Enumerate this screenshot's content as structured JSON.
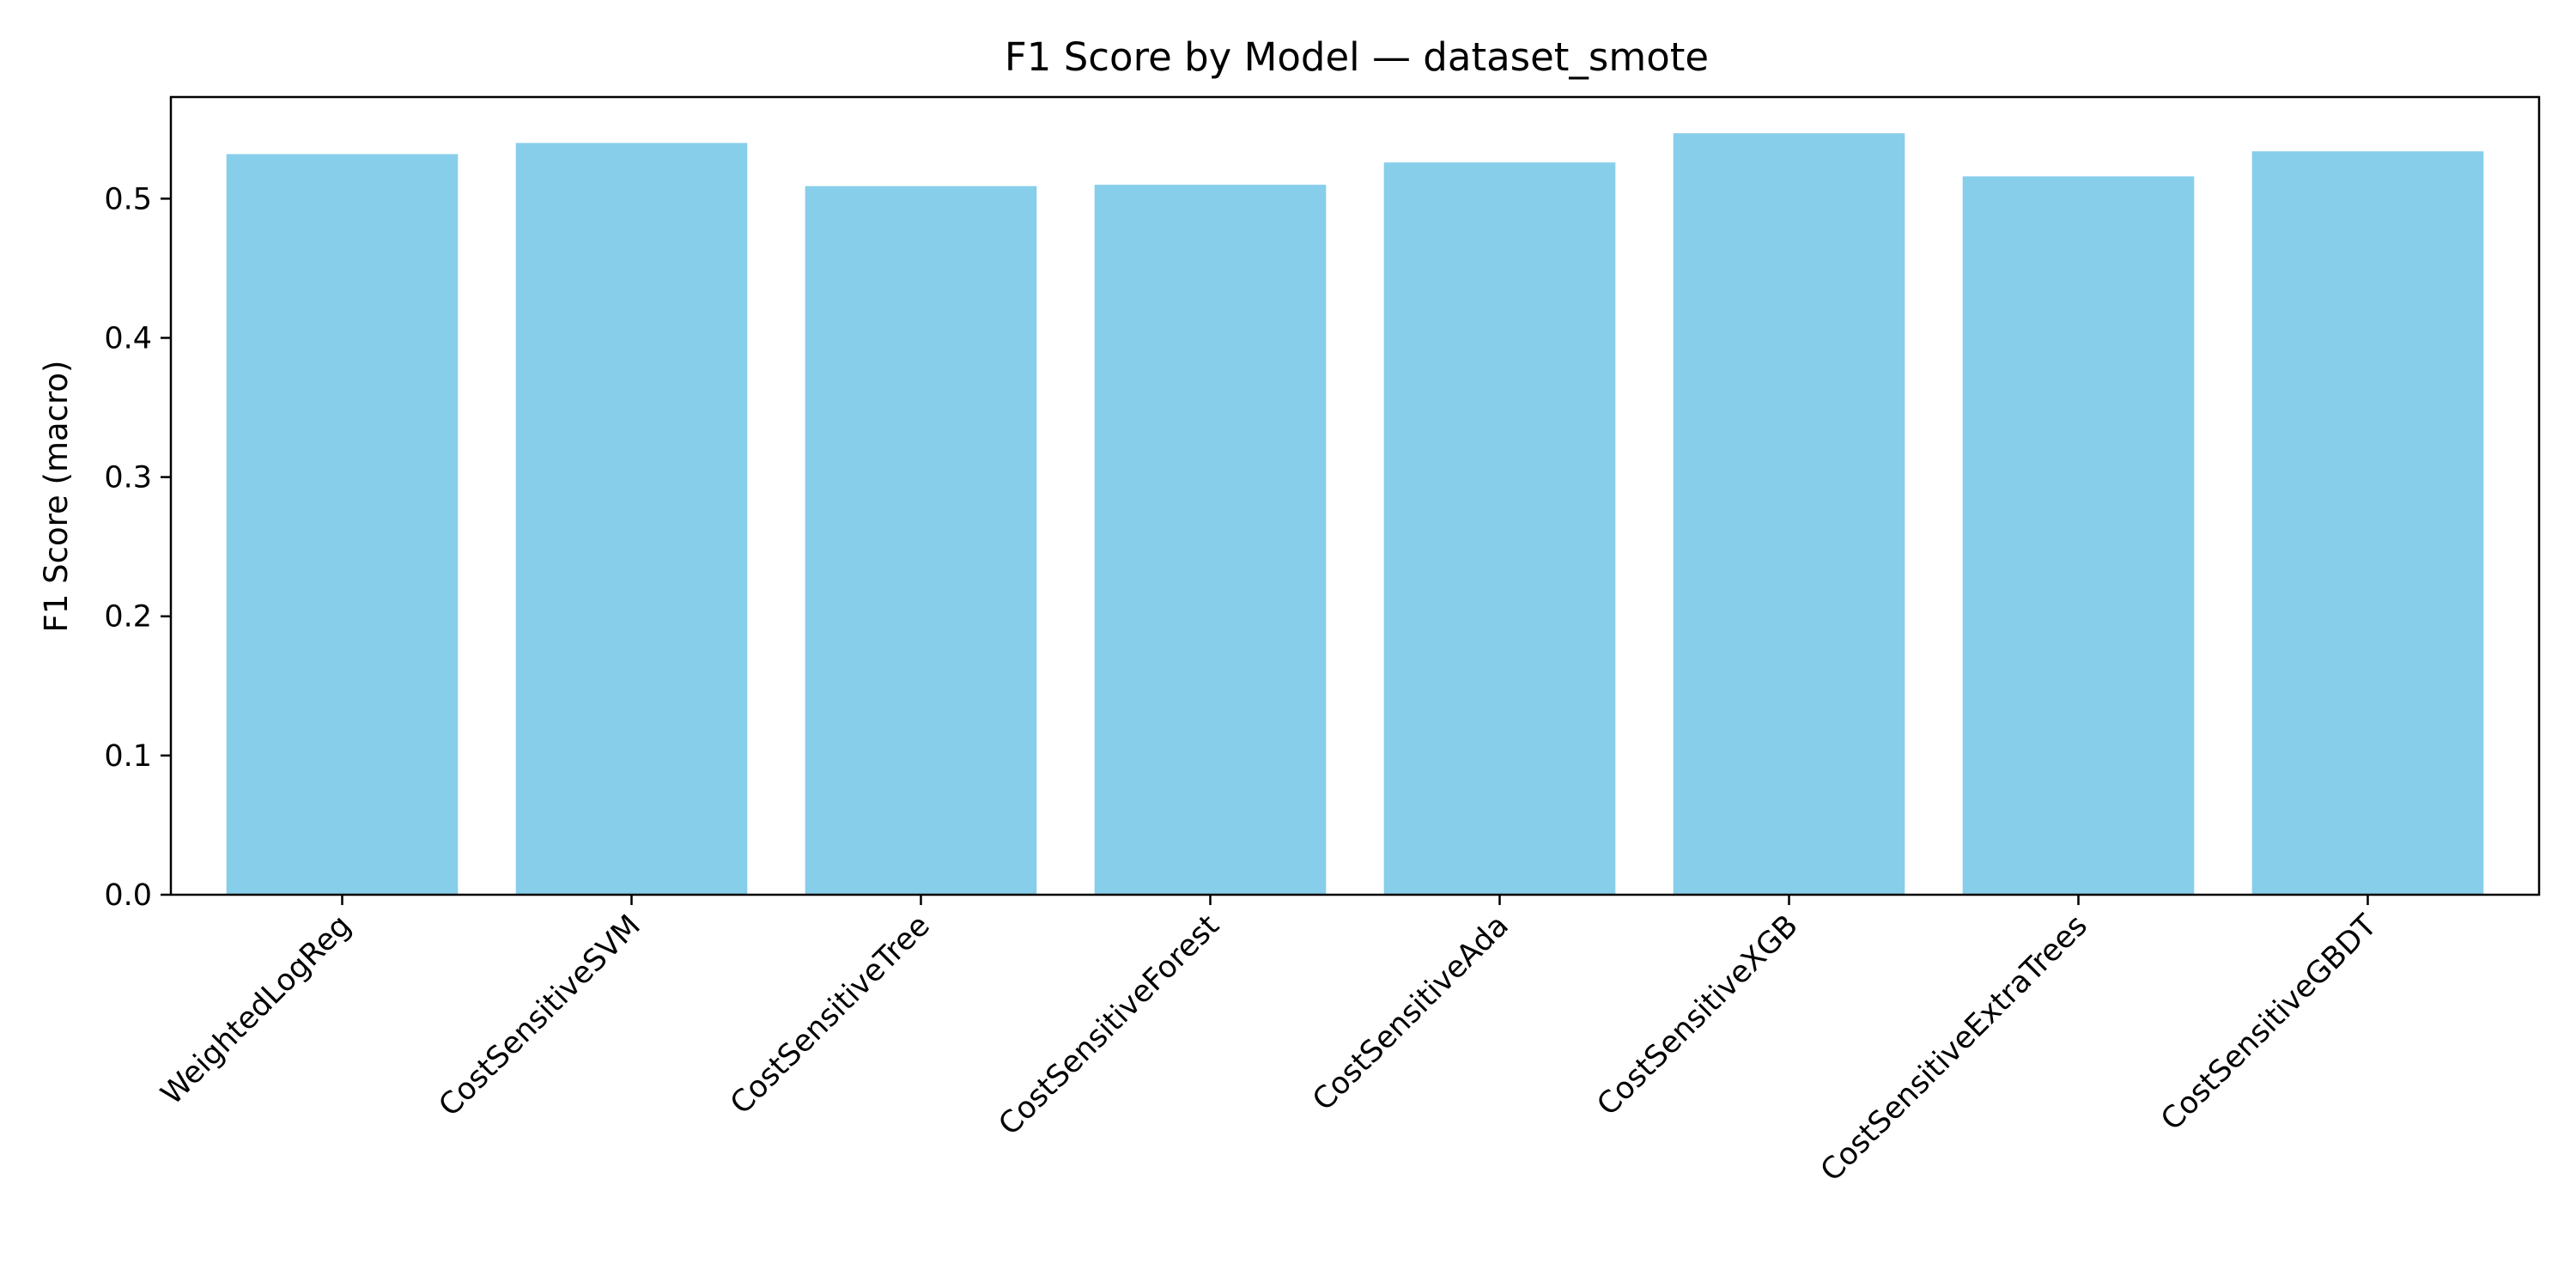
{
  "colors": {
    "bar": "#87ceeb",
    "axis": "#000000",
    "background": "#ffffff"
  },
  "chart_data": {
    "type": "bar",
    "title": "F1 Score by Model — dataset_smote",
    "xlabel": "",
    "ylabel": "F1 Score (macro)",
    "categories": [
      "WeightedLogReg",
      "CostSensitiveSVM",
      "CostSensitiveTree",
      "CostSensitiveForest",
      "CostSensitiveAda",
      "CostSensitiveXGB",
      "CostSensitiveExtraTrees",
      "CostSensitiveGBDT"
    ],
    "values": [
      0.532,
      0.54,
      0.509,
      0.51,
      0.526,
      0.547,
      0.516,
      0.534
    ],
    "ylim": [
      0,
      0.573
    ],
    "yticks": [
      0.0,
      0.1,
      0.2,
      0.3,
      0.4,
      0.5
    ],
    "ytick_labels": [
      "0.0",
      "0.1",
      "0.2",
      "0.3",
      "0.4",
      "0.5"
    ],
    "grid": false,
    "legend": "none"
  }
}
